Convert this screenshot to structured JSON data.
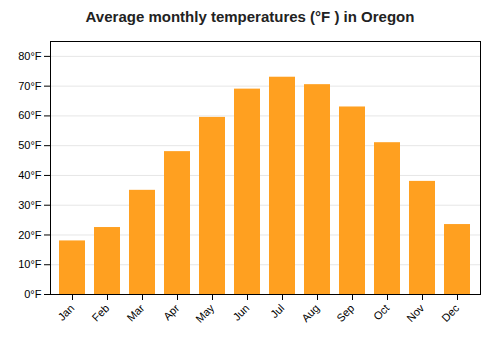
{
  "chart_data": {
    "type": "bar",
    "title": "Average monthly temperatures (°F ) in Oregon",
    "categories": [
      "Jan",
      "Feb",
      "Mar",
      "Apr",
      "May",
      "Jun",
      "Jul",
      "Aug",
      "Sep",
      "Oct",
      "Nov",
      "Dec"
    ],
    "values": [
      18,
      22.5,
      35,
      48,
      59.5,
      69,
      73,
      70.5,
      63,
      51,
      38,
      23.5
    ],
    "color": "#FFA020",
    "ylim": [
      0,
      85
    ],
    "yticks": [
      {
        "value": 0,
        "label": "0°F"
      },
      {
        "value": 10,
        "label": "10°F"
      },
      {
        "value": 20,
        "label": "20°F"
      },
      {
        "value": 30,
        "label": "30°F"
      },
      {
        "value": 40,
        "label": "40°F"
      },
      {
        "value": 50,
        "label": "50°F"
      },
      {
        "value": 60,
        "label": "60°F"
      },
      {
        "value": 70,
        "label": "70°F"
      },
      {
        "value": 80,
        "label": "80°F"
      }
    ],
    "grid": true
  }
}
